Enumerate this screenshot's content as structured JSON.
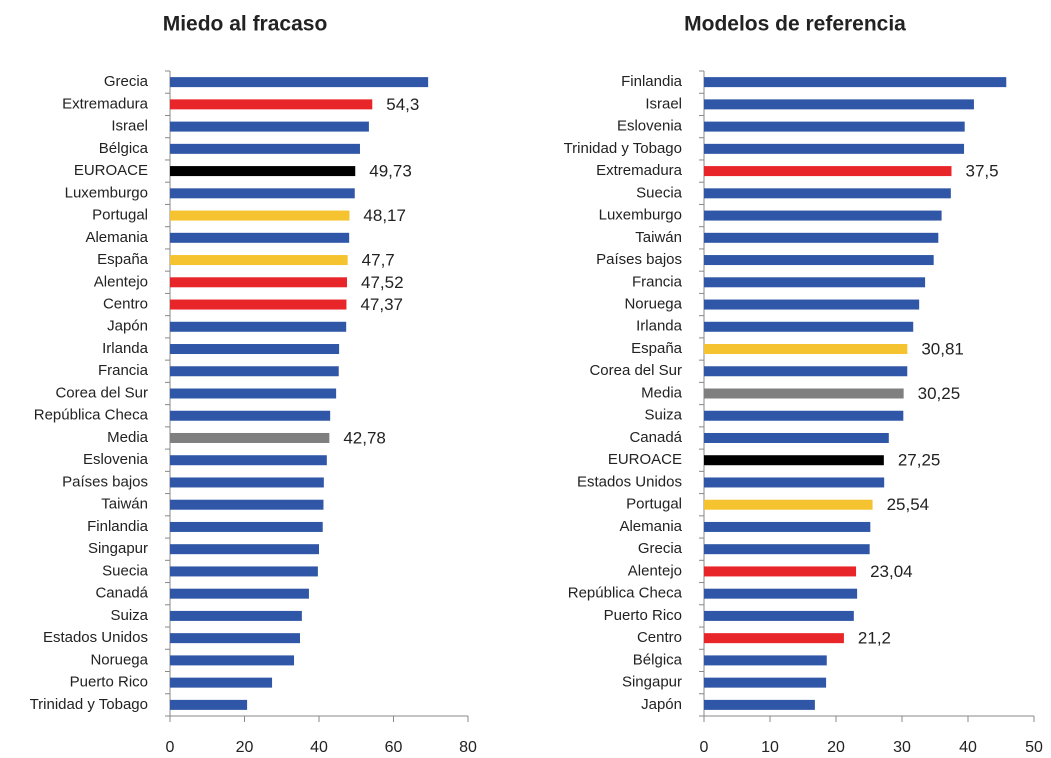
{
  "chart_data": [
    {
      "type": "barh",
      "title": "Miedo al fracaso",
      "categories": [
        "Grecia",
        "Extremadura",
        "Israel",
        "Bélgica",
        "EUROACE",
        "Luxemburgo",
        "Portugal",
        "Alemania",
        "España",
        "Alentejo",
        "Centro",
        "Japón",
        "Irlanda",
        "Francia",
        "Corea del Sur",
        "República Checa",
        "Media",
        "Eslovenia",
        "Países bajos",
        "Taiwán",
        "Finlandia",
        "Singapur",
        "Suecia",
        "Canadá",
        "Suiza",
        "Estados Unidos",
        "Noruega",
        "Puerto Rico",
        "Trinidad y Tobago"
      ],
      "values": [
        69.3,
        54.3,
        53.4,
        51,
        49.73,
        49.6,
        48.17,
        48.1,
        47.7,
        47.52,
        47.37,
        47.3,
        45.4,
        45.3,
        44.6,
        43,
        42.78,
        42.1,
        41.3,
        41.2,
        41,
        40,
        39.7,
        37.3,
        35.4,
        34.9,
        33.3,
        27.4,
        20.7
      ],
      "value_labels": [
        null,
        "54,3",
        null,
        null,
        "49,73",
        null,
        "48,17",
        null,
        "47,7",
        "47,52",
        "47,37",
        null,
        null,
        null,
        null,
        null,
        "42,78",
        null,
        null,
        null,
        null,
        null,
        null,
        null,
        null,
        null,
        null,
        null,
        null
      ],
      "colors": [
        "#3057a7",
        "#e8262a",
        "#3057a7",
        "#3057a7",
        "#000000",
        "#3057a7",
        "#f5c230",
        "#3057a7",
        "#f5c230",
        "#e8262a",
        "#e8262a",
        "#3057a7",
        "#3057a7",
        "#3057a7",
        "#3057a7",
        "#3057a7",
        "#7f7f7f",
        "#3057a7",
        "#3057a7",
        "#3057a7",
        "#3057a7",
        "#3057a7",
        "#3057a7",
        "#3057a7",
        "#3057a7",
        "#3057a7",
        "#3057a7",
        "#3057a7",
        "#3057a7"
      ],
      "xlim": [
        0,
        80
      ],
      "xticks": [
        0,
        20,
        40,
        60,
        80
      ]
    },
    {
      "type": "barh",
      "title": "Modelos de referencia",
      "categories": [
        "Finlandia",
        "Israel",
        "Eslovenia",
        "Trinidad y Tobago",
        "Extremadura",
        "Suecia",
        "Luxemburgo",
        "Taiwán",
        "Países bajos",
        "Francia",
        "Noruega",
        "Irlanda",
        "España",
        "Corea del Sur",
        "Media",
        "Suiza",
        "Canadá",
        "EUROACE",
        "Estados Unidos",
        "Portugal",
        "Alemania",
        "Grecia",
        "Alentejo",
        "República Checa",
        "Puerto Rico",
        "Centro",
        "Bélgica",
        "Singapur",
        "Japón"
      ],
      "values": [
        45.8,
        40.9,
        39.5,
        39.4,
        37.5,
        37.4,
        36,
        35.5,
        34.8,
        33.5,
        32.6,
        31.7,
        30.81,
        30.8,
        30.25,
        30.2,
        28,
        27.25,
        27.3,
        25.54,
        25.2,
        25.1,
        23.04,
        23.2,
        22.7,
        21.2,
        18.6,
        18.5,
        16.8
      ],
      "value_labels": [
        null,
        null,
        null,
        null,
        "37,5",
        null,
        null,
        null,
        null,
        null,
        null,
        null,
        "30,81",
        null,
        "30,25",
        null,
        null,
        "27,25",
        null,
        "25,54",
        null,
        null,
        "23,04",
        null,
        null,
        "21,2",
        null,
        null,
        null
      ],
      "colors": [
        "#3057a7",
        "#3057a7",
        "#3057a7",
        "#3057a7",
        "#e8262a",
        "#3057a7",
        "#3057a7",
        "#3057a7",
        "#3057a7",
        "#3057a7",
        "#3057a7",
        "#3057a7",
        "#f5c230",
        "#3057a7",
        "#7f7f7f",
        "#3057a7",
        "#3057a7",
        "#000000",
        "#3057a7",
        "#f5c230",
        "#3057a7",
        "#3057a7",
        "#e8262a",
        "#3057a7",
        "#3057a7",
        "#e8262a",
        "#3057a7",
        "#3057a7",
        "#3057a7"
      ],
      "xlim": [
        0,
        50
      ],
      "xticks": [
        0,
        10,
        20,
        30,
        40,
        50
      ]
    }
  ]
}
